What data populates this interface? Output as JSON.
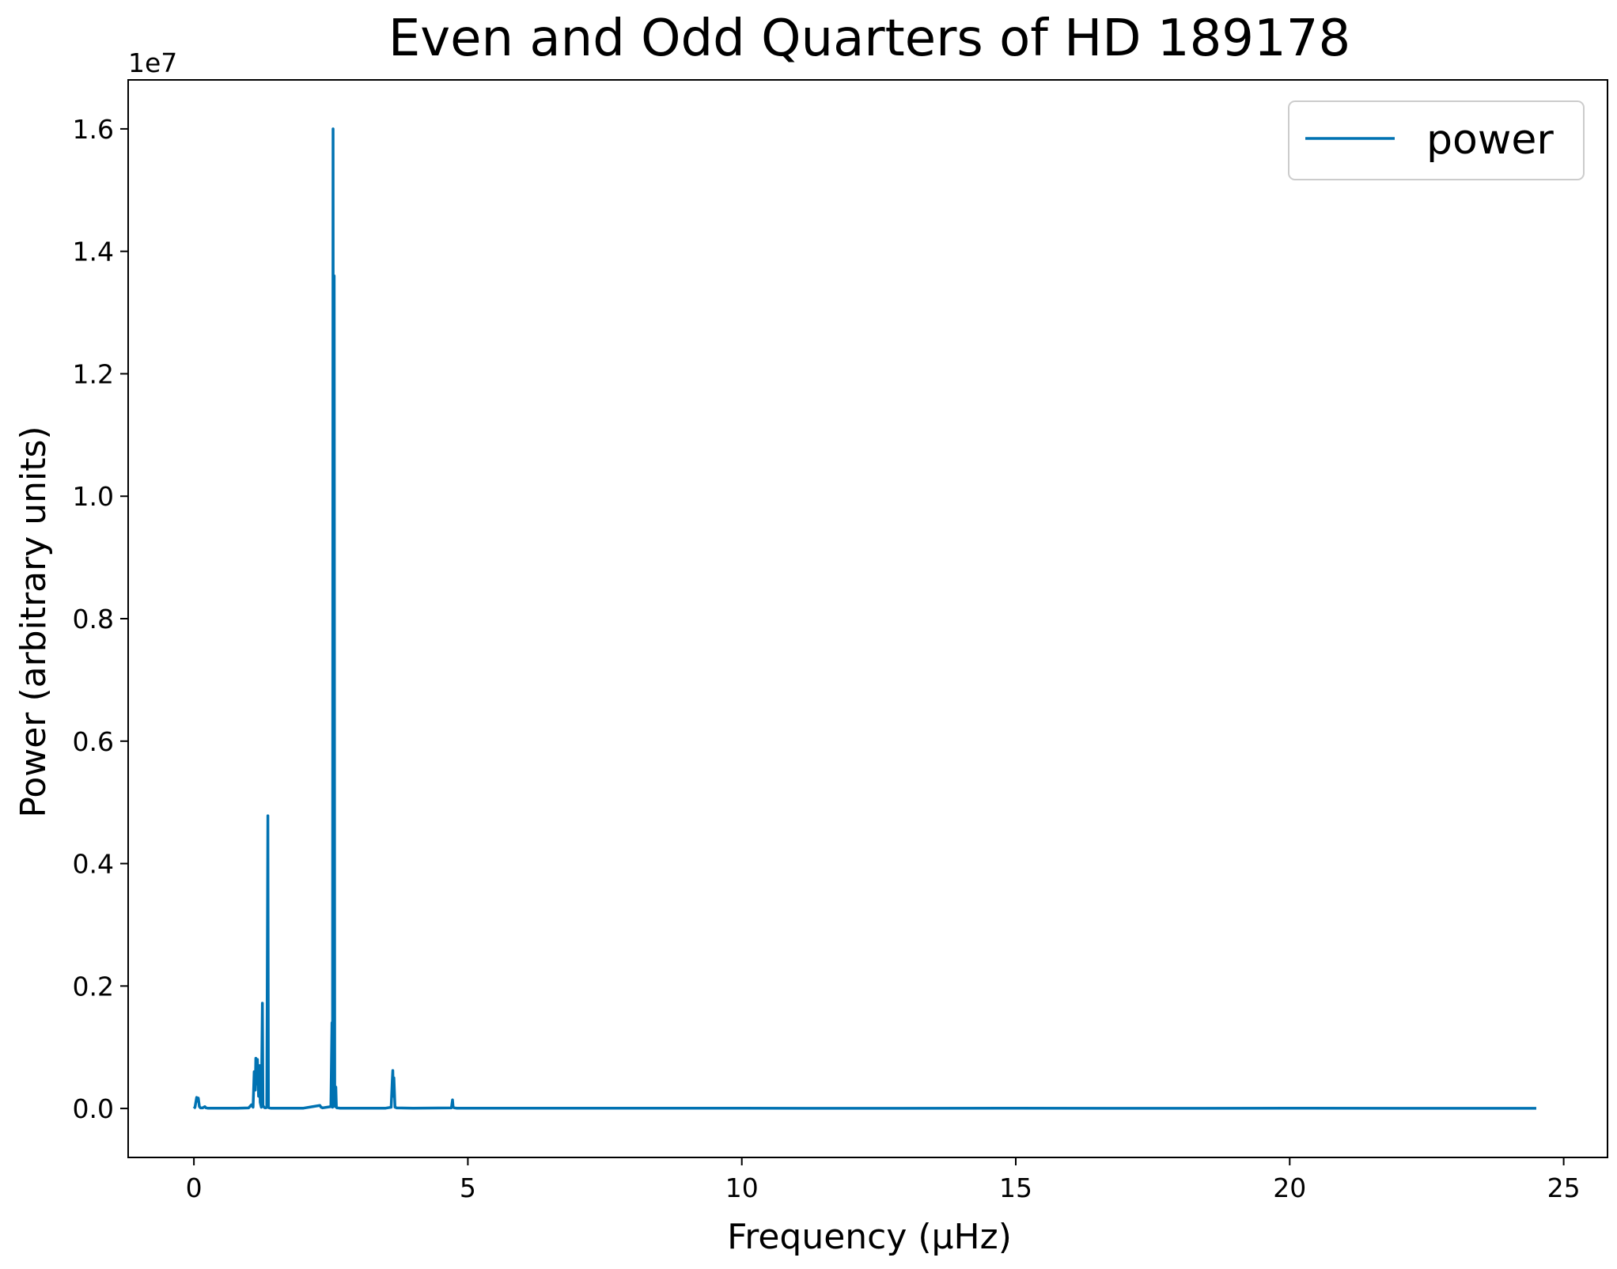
{
  "chart_data": {
    "type": "line",
    "title": "Even and Odd Quarters of HD 189178",
    "xlabel": "Frequency (μHz)",
    "ylabel": "Power (arbitrary units)",
    "y_offset_label": "1e7",
    "xlim": [
      -1.2,
      25.8
    ],
    "ylim": [
      -0.08,
      1.68
    ],
    "x_ticks": [
      0,
      5,
      10,
      15,
      20,
      25
    ],
    "x_tick_labels": [
      "0",
      "5",
      "10",
      "15",
      "20",
      "25"
    ],
    "y_ticks": [
      0.0,
      0.2,
      0.4,
      0.6,
      0.8,
      1.0,
      1.2,
      1.4,
      1.6
    ],
    "y_tick_labels": [
      "0.0",
      "0.2",
      "0.4",
      "0.6",
      "0.8",
      "1.0",
      "1.2",
      "1.4",
      "1.6"
    ],
    "grid": false,
    "legend_position": "top-right",
    "series": [
      {
        "name": "power",
        "color": "#0072b2",
        "x": [
          0.0,
          0.02,
          0.05,
          0.06,
          0.08,
          0.1,
          0.12,
          0.16,
          0.2,
          0.22,
          0.25,
          0.4,
          0.8,
          1.0,
          1.05,
          1.08,
          1.1,
          1.12,
          1.13,
          1.15,
          1.16,
          1.18,
          1.2,
          1.21,
          1.23,
          1.25,
          1.26,
          1.28,
          1.3,
          1.33,
          1.35,
          1.36,
          1.37,
          1.4,
          1.5,
          2.0,
          2.3,
          2.32,
          2.35,
          2.5,
          2.52,
          2.53,
          2.54,
          2.55,
          2.56,
          2.57,
          2.58,
          2.59,
          2.6,
          2.61,
          2.62,
          2.64,
          2.66,
          2.7,
          3.0,
          3.5,
          3.6,
          3.62,
          3.63,
          3.64,
          3.65,
          3.67,
          3.7,
          4.0,
          4.7,
          4.72,
          4.73,
          4.75,
          4.8,
          5.0,
          6.0,
          8.0,
          10.0,
          12.0,
          15.0,
          18.0,
          20.0,
          22.0,
          24.5
        ],
        "values": [
          0.0,
          0.002,
          0.018,
          0.012,
          0.017,
          0.003,
          0.001,
          0.001,
          0.003,
          0.001,
          0.0005,
          0.0005,
          0.0005,
          0.001,
          0.006,
          0.002,
          0.06,
          0.03,
          0.082,
          0.04,
          0.08,
          0.02,
          0.07,
          0.01,
          0.002,
          0.172,
          0.005,
          0.002,
          0.001,
          0.0015,
          0.478,
          0.003,
          0.001,
          0.0005,
          0.0005,
          0.0005,
          0.005,
          0.002,
          0.001,
          0.003,
          0.14,
          0.002,
          1.6,
          0.005,
          1.36,
          0.02,
          0.003,
          0.035,
          0.002,
          0.001,
          0.001,
          0.0008,
          0.0005,
          0.0005,
          0.0005,
          0.0005,
          0.002,
          0.045,
          0.062,
          0.02,
          0.05,
          0.002,
          0.001,
          0.0005,
          0.001,
          0.014,
          0.003,
          0.001,
          0.0005,
          0.0005,
          0.0005,
          0.0004,
          0.0004,
          0.0003,
          0.0004,
          0.0003,
          0.0004,
          0.0003,
          0.0003
        ]
      }
    ]
  }
}
